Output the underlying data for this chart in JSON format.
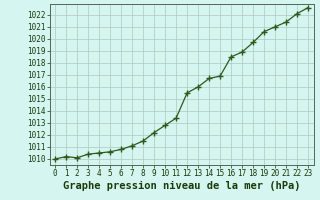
{
  "x": [
    0,
    1,
    2,
    3,
    4,
    5,
    6,
    7,
    8,
    9,
    10,
    11,
    12,
    13,
    14,
    15,
    16,
    17,
    18,
    19,
    20,
    21,
    22,
    23
  ],
  "y": [
    1010.0,
    1010.2,
    1010.1,
    1010.4,
    1010.5,
    1010.6,
    1010.8,
    1011.1,
    1011.5,
    1012.2,
    1012.8,
    1013.4,
    1015.5,
    1016.0,
    1016.7,
    1016.9,
    1018.5,
    1018.9,
    1019.7,
    1020.6,
    1021.0,
    1021.4,
    1022.1,
    1022.6
  ],
  "ylim": [
    1009.5,
    1022.9
  ],
  "xlim": [
    -0.5,
    23.5
  ],
  "yticks": [
    1010,
    1011,
    1012,
    1013,
    1014,
    1015,
    1016,
    1017,
    1018,
    1019,
    1020,
    1021,
    1022
  ],
  "xticks": [
    0,
    1,
    2,
    3,
    4,
    5,
    6,
    7,
    8,
    9,
    10,
    11,
    12,
    13,
    14,
    15,
    16,
    17,
    18,
    19,
    20,
    21,
    22,
    23
  ],
  "line_color": "#2d5a1b",
  "marker_color": "#2d5a1b",
  "bg_color": "#d5f5f0",
  "grid_color": "#b0c8c0",
  "border_color": "#556655",
  "xlabel": "Graphe pression niveau de la mer (hPa)",
  "xlabel_color": "#1a3a0a",
  "tick_color": "#1a3a0a",
  "tick_fontsize": 5.5,
  "xlabel_fontsize": 7.5
}
